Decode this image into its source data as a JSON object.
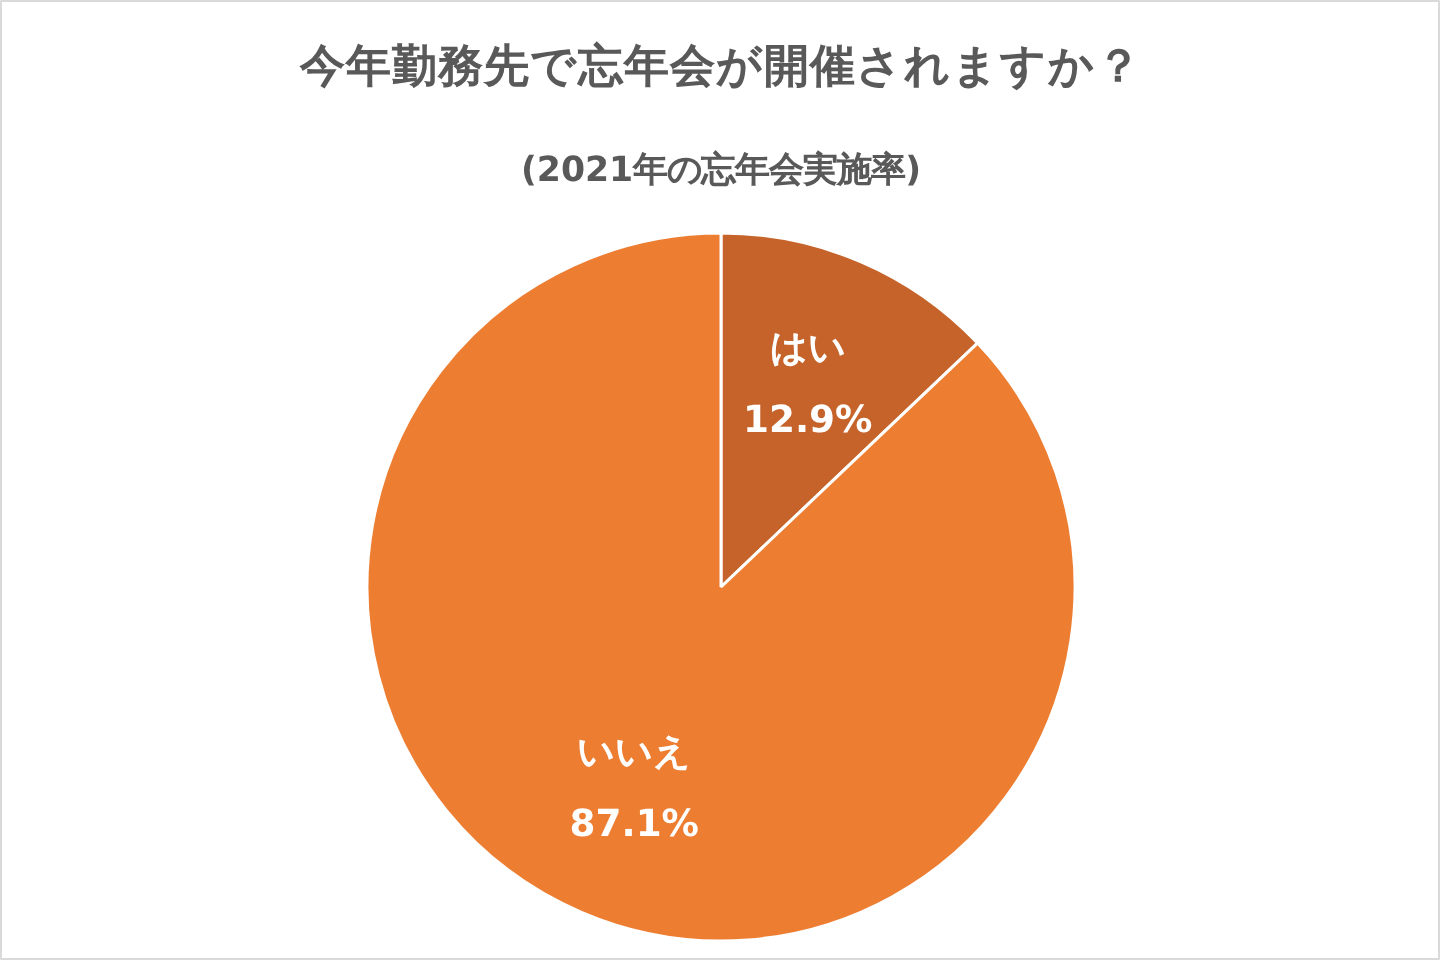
{
  "chart_data": {
    "type": "pie",
    "title": "今年勤務先で忘年会が開催されますか？",
    "subtitle": "(2021年の忘年会実施率)",
    "categories": [
      "はい",
      "いいえ"
    ],
    "values": [
      12.9,
      87.1
    ],
    "colors": [
      "#c5632a",
      "#ed7d31"
    ],
    "value_labels": [
      "12.9%",
      "87.1%"
    ]
  }
}
